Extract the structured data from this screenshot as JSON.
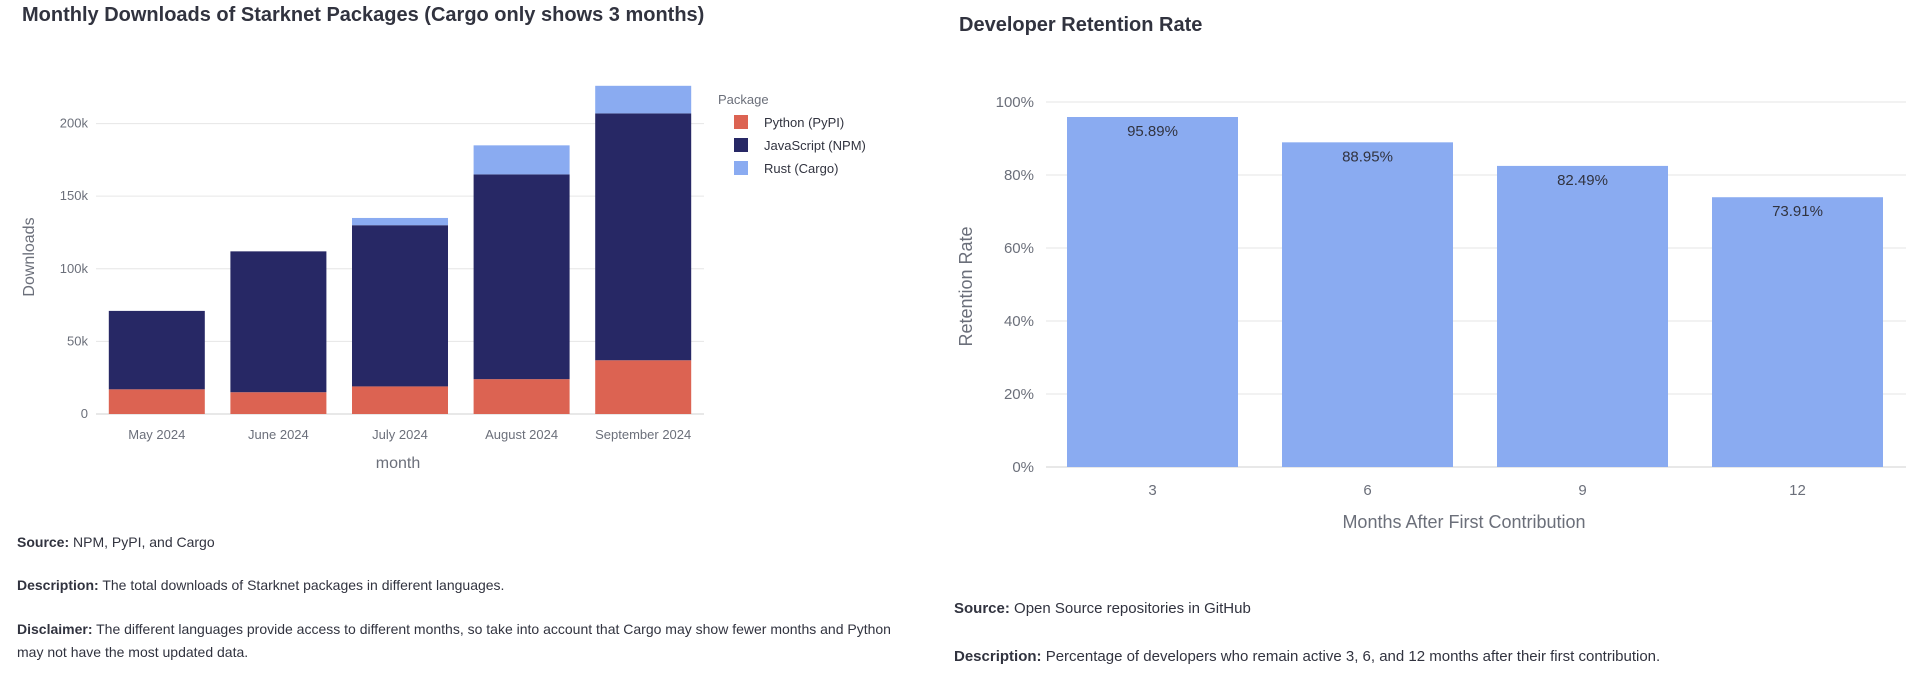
{
  "left": {
    "title": "Monthly Downloads of Starknet Packages (Cargo only shows 3 months)",
    "source_label": "Source:",
    "source_text": "NPM, PyPI, and Cargo",
    "description_label": "Description:",
    "description_text": "The total downloads of Starknet packages in different languages.",
    "disclaimer_label": "Disclaimer:",
    "disclaimer_text": "The different languages provide access to different months, so take into account that Cargo may show fewer months and Python may not have the most updated data."
  },
  "right": {
    "title": "Developer Retention Rate",
    "source_label": "Source:",
    "source_text": "Open Source repositories in GitHub",
    "description_label": "Description:",
    "description_text": "Percentage of developers who remain active 3, 6, and 12 months after their first contribution."
  },
  "chart_data": [
    {
      "type": "bar",
      "stacked": true,
      "title": "Monthly Downloads of Starknet Packages (Cargo only shows 3 months)",
      "xlabel": "month",
      "ylabel": "Downloads",
      "categories": [
        "May 2024",
        "June 2024",
        "July 2024",
        "August 2024",
        "September 2024"
      ],
      "series": [
        {
          "name": "Python (PyPI)",
          "color": "#dc6352",
          "values": [
            17000,
            15000,
            19000,
            24000,
            37000
          ]
        },
        {
          "name": "JavaScript (NPM)",
          "color": "#272865",
          "values": [
            54000,
            97000,
            111000,
            141000,
            170000
          ]
        },
        {
          "name": "Rust (Cargo)",
          "color": "#8aabf1",
          "values": [
            0,
            0,
            5000,
            20000,
            19000
          ]
        }
      ],
      "ylim": [
        0,
        230000
      ],
      "yticks": [
        0,
        50000,
        100000,
        150000,
        200000
      ],
      "ytick_labels": [
        "0",
        "50k",
        "100k",
        "150k",
        "200k"
      ],
      "legend_title": "Package",
      "legend_position": "right",
      "grid": true
    },
    {
      "type": "bar",
      "title": "Developer Retention Rate",
      "xlabel": "Months After First Contribution",
      "ylabel": "Retention Rate",
      "categories": [
        "3",
        "6",
        "9",
        "12"
      ],
      "values": [
        95.89,
        88.95,
        82.49,
        73.91
      ],
      "value_labels": [
        "95.89%",
        "88.95%",
        "82.49%",
        "73.91%"
      ],
      "color": "#8aabf1",
      "ylim": [
        0,
        100
      ],
      "yticks": [
        0,
        20,
        40,
        60,
        80,
        100
      ],
      "ytick_labels": [
        "0%",
        "20%",
        "40%",
        "60%",
        "80%",
        "100%"
      ],
      "grid": true
    }
  ]
}
